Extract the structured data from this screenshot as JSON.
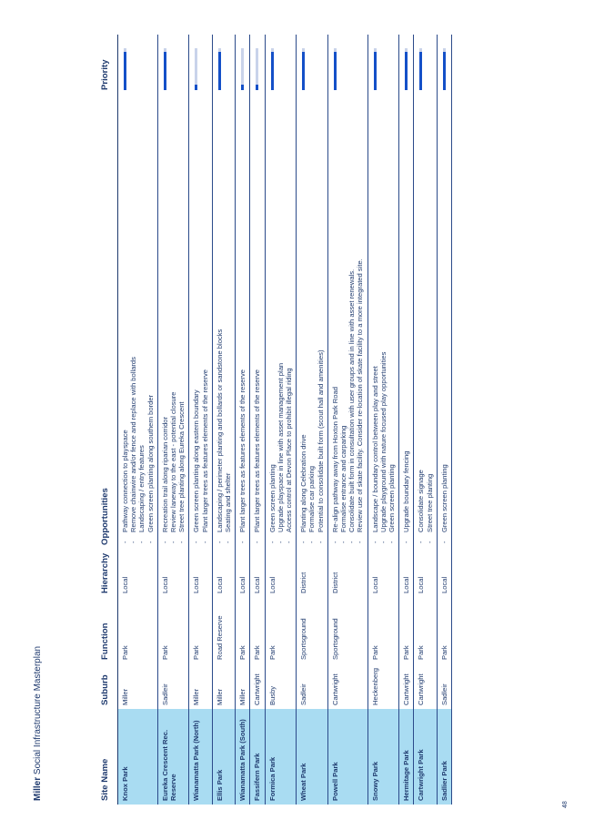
{
  "header": {
    "bold": "Miller",
    "text": " Social Infrastructure Masterplan"
  },
  "page_number": "48",
  "columns": [
    "Site Name",
    "Suburb",
    "Function",
    "Hierarchy",
    "Opportunities",
    "Priority"
  ],
  "rows": [
    {
      "site": "Knox Park",
      "suburb": "Miller",
      "function": "Park",
      "hierarchy": "Local",
      "opportunities": [
        "Pathway connection to playspace",
        "Remove chainwire and/or fence and replace with bollards",
        "Landscaping / entry features",
        "Green screen planting along southern border"
      ],
      "priority": 0.92
    },
    {
      "site": "Eureka Crescent Rec. Reserve",
      "suburb": "Sadleir",
      "function": "Park",
      "hierarchy": "Local",
      "opportunities": [
        "Recreation trail along riparian corridor",
        "Review laneway to the east - potential closure",
        "Street tree planting along Eureka Crescent"
      ],
      "priority": 0.92
    },
    {
      "site": "Wianamatta Park (North)",
      "suburb": "Miller",
      "function": "Park",
      "hierarchy": "Local",
      "opportunities": [
        "Green screen planting along eastern boundary",
        "Plant larger trees as features elements of the reserve"
      ],
      "priority": 0.12
    },
    {
      "site": "Ellis Park",
      "suburb": "Miller",
      "function": "Road Reserve",
      "hierarchy": "Local",
      "opportunities": [
        "Landscaping / perimeter planting and bollards or sandstone blocks",
        "Seating and shelter"
      ],
      "priority": 0.92
    },
    {
      "site": "Wianamatta Park (South)",
      "suburb": "Miller",
      "function": "Park",
      "hierarchy": "Local",
      "opportunities": [
        "Plant larger trees as features elements of the reserve"
      ],
      "priority": 0.12
    },
    {
      "site": "Fassifern Park",
      "suburb": "Cartwright",
      "function": "Park",
      "hierarchy": "Local",
      "opportunities": [
        "Plant larger trees as features elements of the reserve"
      ],
      "priority": 0.12
    },
    {
      "site": "Formica Park",
      "suburb": "Busby",
      "function": "Park",
      "hierarchy": "Local",
      "opportunities": [
        "Green screen planting",
        "Upgrade playspace in line with asset management plan",
        "Access control at Devon Place to prohibit illegal riding"
      ],
      "priority": 0.92
    },
    {
      "site": "Wheat Park",
      "suburb": "Sadleir",
      "function": "Sportsground",
      "hierarchy": "District",
      "opportunities": [
        "Planting along Celebration drive",
        "Formalise car parking",
        "Potential to consolidate built form (scout hall and amenities)"
      ],
      "priority": 0.92
    },
    {
      "site": "Powell Park",
      "suburb": "Cartwright",
      "function": "Sportsground",
      "hierarchy": "District",
      "opportunities": [
        "Re-align pathway away from Hoxton Park Road",
        "Formalise entrance and carparking",
        "Consolidate built form in consultation with user groups and in line with asset renewals.",
        "Review use of skate facility. Consider re-location of skate facility to a more integrated site."
      ],
      "priority": 0.92
    },
    {
      "site": "Snowy Park",
      "suburb": "Heckenberg",
      "function": "Park",
      "hierarchy": "Local",
      "opportunities": [
        "Landscape / boundary control between play and street",
        "Upgrade playground with nature focused play opportunities",
        "Green screen planting"
      ],
      "priority": 0.92
    },
    {
      "site": "Hermitage Park",
      "suburb": "Cartwright",
      "function": "Park",
      "hierarchy": "Local",
      "opportunities": [
        "Upgrade boundary fencing"
      ],
      "priority": 0.92
    },
    {
      "site": "Cartwright Park",
      "suburb": "Cartwright",
      "function": "Park",
      "hierarchy": "Local",
      "opportunities": [
        "Consolidate signage",
        "Street tree planting"
      ],
      "priority": 0.92
    },
    {
      "site": "Sadlier Park",
      "suburb": "Sadleir",
      "function": "Park",
      "hierarchy": "Local",
      "opportunities": [
        "Green screen planting"
      ],
      "priority": 0.92
    }
  ]
}
